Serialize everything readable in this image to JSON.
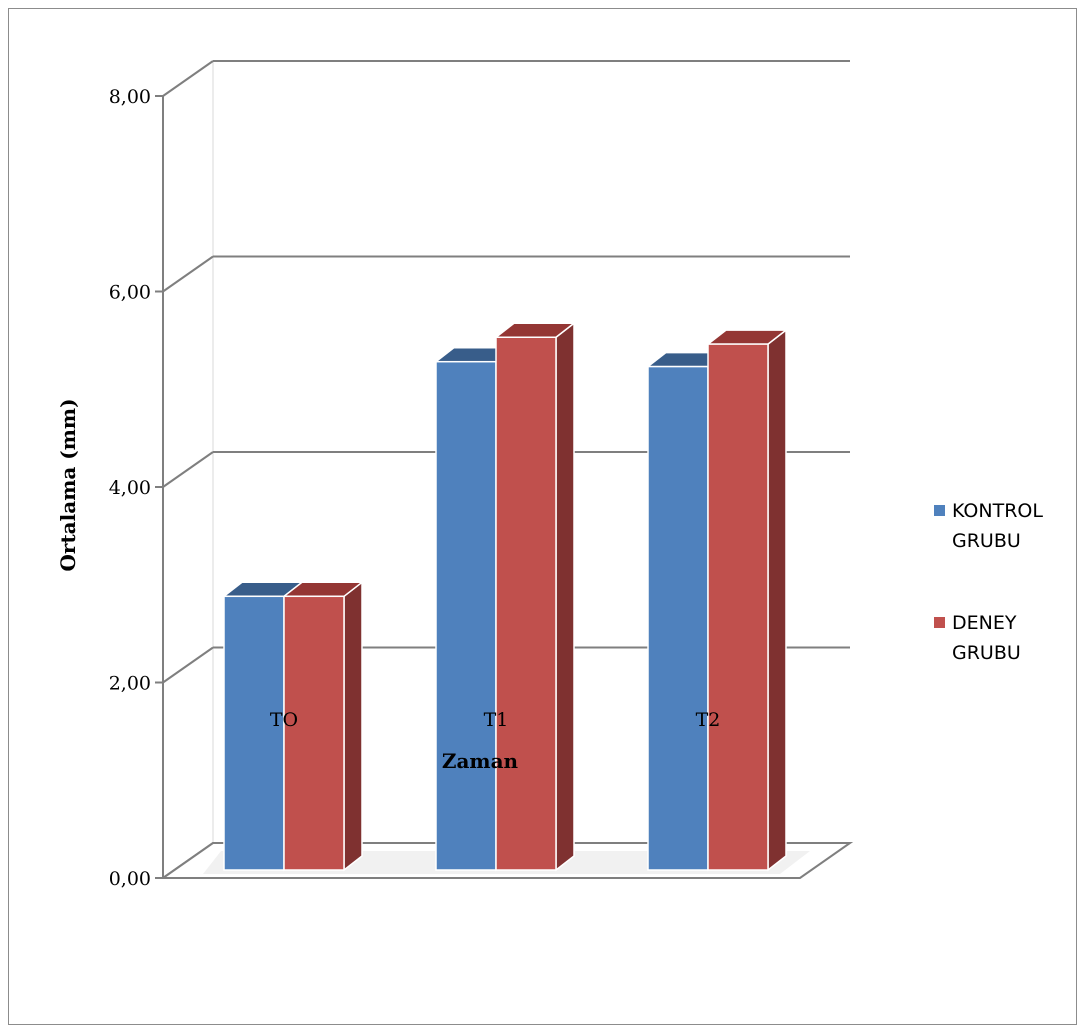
{
  "chart_data": {
    "type": "bar",
    "categories": [
      "TO",
      "T1",
      "T2"
    ],
    "series": [
      {
        "name": "KONTROL GRUBU",
        "name_lines": [
          "KONTROL",
          "GRUBU"
        ],
        "values": [
          2.8,
          5.2,
          5.15
        ],
        "color": "#4f81bd",
        "top_color": "#385d8a",
        "side_color": "#2c4d75"
      },
      {
        "name": "DENEY GRUBU",
        "name_lines": [
          "DENEY",
          "GRUBU"
        ],
        "values": [
          2.8,
          5.45,
          5.38
        ],
        "color": "#c0504d",
        "top_color": "#943634",
        "side_color": "#7f3130"
      }
    ],
    "xlabel": "Zaman",
    "ylabel": "Ortalama (mm)",
    "ylim": [
      0,
      8
    ],
    "yticks": [
      "0,00",
      "2,00",
      "4,00",
      "6,00",
      "8,00"
    ],
    "grid": true,
    "legend": "right"
  }
}
